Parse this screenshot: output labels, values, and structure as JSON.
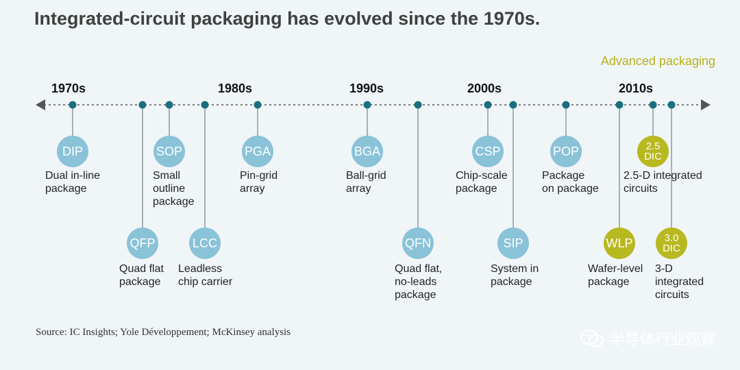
{
  "title": "Integrated-circuit packaging has evolved since the 1970s.",
  "advanced_label": "Advanced packaging",
  "decades": [
    "1970s",
    "1980s",
    "1990s",
    "2000s",
    "2010s"
  ],
  "items": [
    {
      "abbr": "DIP",
      "desc": "Dual in-line\npackage",
      "color": "blue"
    },
    {
      "abbr": "QFP",
      "desc": "Quad flat\npackage",
      "color": "blue"
    },
    {
      "abbr": "SOP",
      "desc": "Small\noutline\npackage",
      "color": "blue"
    },
    {
      "abbr": "LCC",
      "desc": "Leadless\nchip carrier",
      "color": "blue"
    },
    {
      "abbr": "PGA",
      "desc": "Pin-grid\narray",
      "color": "blue"
    },
    {
      "abbr": "BGA",
      "desc": "Ball-grid\narray",
      "color": "blue"
    },
    {
      "abbr": "QFN",
      "desc": "Quad flat,\nno-leads\npackage",
      "color": "blue"
    },
    {
      "abbr": "CSP",
      "desc": "Chip-scale\npackage",
      "color": "blue"
    },
    {
      "abbr": "SIP",
      "desc": "System in\npackage",
      "color": "blue"
    },
    {
      "abbr": "POP",
      "desc": "Package\non package",
      "color": "blue"
    },
    {
      "abbr": "WLP",
      "desc": "Wafer-level\npackage",
      "color": "gold"
    },
    {
      "abbr": "2.5\nDIC",
      "desc": "2.5-D integrated\ncircuits",
      "color": "gold"
    },
    {
      "abbr": "3.0\nDIC",
      "desc": "3-D\nintegrated\ncircuits",
      "color": "gold"
    }
  ],
  "source": "Source: IC Insights; Yole Développement; McKinsey analysis",
  "watermark": "半导体行业观察",
  "colors": {
    "background": "#f0f5f8",
    "timeline_dot": "#1a6f7e",
    "circle_blue": "#8ac2d8",
    "circle_gold": "#b8b820",
    "advanced_label": "#b7b21a"
  }
}
